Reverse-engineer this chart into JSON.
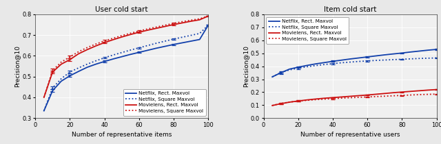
{
  "left": {
    "title": "User cold start",
    "xlabel": "Number of representative items",
    "ylabel": "Precision@10",
    "xlim": [
      0,
      100
    ],
    "ylim": [
      0.3,
      0.8
    ],
    "yticks": [
      0.3,
      0.4,
      0.5,
      0.6,
      0.7,
      0.8
    ],
    "xticks": [
      0,
      20,
      40,
      60,
      80,
      100
    ],
    "x": [
      5,
      10,
      15,
      20,
      25,
      30,
      35,
      40,
      45,
      50,
      55,
      60,
      65,
      70,
      75,
      80,
      85,
      90,
      95,
      100
    ],
    "netflix_rect": [
      0.335,
      0.432,
      0.478,
      0.504,
      0.525,
      0.545,
      0.56,
      0.573,
      0.585,
      0.596,
      0.607,
      0.617,
      0.627,
      0.637,
      0.646,
      0.655,
      0.663,
      0.671,
      0.679,
      0.748
    ],
    "netflix_square": [
      0.335,
      0.445,
      0.49,
      0.522,
      0.542,
      0.56,
      0.576,
      0.591,
      0.604,
      0.616,
      0.628,
      0.639,
      0.65,
      0.661,
      0.671,
      0.681,
      0.69,
      0.699,
      0.708,
      0.748
    ],
    "movielens_rect": [
      0.4,
      0.522,
      0.56,
      0.582,
      0.61,
      0.63,
      0.648,
      0.664,
      0.678,
      0.691,
      0.703,
      0.714,
      0.724,
      0.733,
      0.742,
      0.751,
      0.759,
      0.767,
      0.774,
      0.792
    ],
    "movielens_square": [
      0.4,
      0.53,
      0.57,
      0.595,
      0.62,
      0.64,
      0.657,
      0.672,
      0.685,
      0.698,
      0.709,
      0.72,
      0.73,
      0.739,
      0.748,
      0.757,
      0.765,
      0.772,
      0.779,
      0.792
    ],
    "netflix_rect_err": [
      0.012,
      0.007,
      0.006,
      0.006,
      0.005,
      0.004,
      0.004,
      0.004,
      0.004,
      0.003,
      0.003,
      0.003,
      0.003,
      0.003,
      0.003,
      0.003,
      0.003,
      0.003,
      0.003,
      0.003
    ],
    "netflix_square_err": [
      0.012,
      0.007,
      0.006,
      0.006,
      0.005,
      0.004,
      0.004,
      0.004,
      0.004,
      0.003,
      0.003,
      0.003,
      0.003,
      0.003,
      0.003,
      0.003,
      0.003,
      0.003,
      0.003,
      0.003
    ],
    "movielens_rect_err": [
      0.012,
      0.008,
      0.007,
      0.006,
      0.005,
      0.005,
      0.004,
      0.004,
      0.004,
      0.003,
      0.003,
      0.003,
      0.003,
      0.003,
      0.003,
      0.003,
      0.003,
      0.003,
      0.003,
      0.003
    ],
    "movielens_square_err": [
      0.012,
      0.008,
      0.007,
      0.006,
      0.005,
      0.005,
      0.004,
      0.004,
      0.004,
      0.003,
      0.003,
      0.003,
      0.003,
      0.003,
      0.003,
      0.003,
      0.003,
      0.003,
      0.003,
      0.003
    ],
    "legend_loc": "lower right",
    "blue": "#1240ab",
    "red": "#cc1111"
  },
  "right": {
    "title": "Item cold start",
    "xlabel": "Number of representative users",
    "ylabel": "Precision@10",
    "xlim": [
      0,
      100
    ],
    "ylim": [
      0.0,
      0.8
    ],
    "yticks": [
      0.0,
      0.1,
      0.2,
      0.3,
      0.4,
      0.5,
      0.6,
      0.7,
      0.8
    ],
    "xticks": [
      0,
      20,
      40,
      60,
      80,
      100
    ],
    "x": [
      5,
      10,
      15,
      20,
      25,
      30,
      35,
      40,
      45,
      50,
      55,
      60,
      65,
      70,
      75,
      80,
      85,
      90,
      95,
      100
    ],
    "netflix_rect": [
      0.318,
      0.35,
      0.378,
      0.393,
      0.406,
      0.418,
      0.428,
      0.438,
      0.447,
      0.456,
      0.464,
      0.472,
      0.48,
      0.488,
      0.495,
      0.502,
      0.51,
      0.517,
      0.524,
      0.53
    ],
    "netflix_square": [
      0.318,
      0.352,
      0.372,
      0.385,
      0.396,
      0.405,
      0.413,
      0.42,
      0.427,
      0.432,
      0.437,
      0.441,
      0.445,
      0.448,
      0.451,
      0.454,
      0.457,
      0.46,
      0.462,
      0.464
    ],
    "movielens_rect": [
      0.097,
      0.111,
      0.123,
      0.132,
      0.14,
      0.147,
      0.153,
      0.158,
      0.163,
      0.168,
      0.173,
      0.178,
      0.184,
      0.19,
      0.196,
      0.201,
      0.206,
      0.211,
      0.216,
      0.22
    ],
    "movielens_square": [
      0.097,
      0.113,
      0.123,
      0.131,
      0.137,
      0.142,
      0.146,
      0.15,
      0.154,
      0.157,
      0.16,
      0.163,
      0.166,
      0.169,
      0.172,
      0.175,
      0.178,
      0.181,
      0.183,
      0.185
    ],
    "netflix_rect_err": [
      0.01,
      0.008,
      0.007,
      0.006,
      0.006,
      0.005,
      0.005,
      0.005,
      0.004,
      0.004,
      0.004,
      0.004,
      0.004,
      0.004,
      0.003,
      0.003,
      0.003,
      0.003,
      0.003,
      0.003
    ],
    "netflix_square_err": [
      0.01,
      0.008,
      0.007,
      0.006,
      0.006,
      0.005,
      0.005,
      0.005,
      0.004,
      0.004,
      0.004,
      0.004,
      0.004,
      0.004,
      0.003,
      0.003,
      0.003,
      0.003,
      0.003,
      0.003
    ],
    "movielens_rect_err": [
      0.007,
      0.006,
      0.005,
      0.005,
      0.004,
      0.004,
      0.004,
      0.004,
      0.003,
      0.003,
      0.003,
      0.003,
      0.003,
      0.003,
      0.003,
      0.003,
      0.003,
      0.003,
      0.003,
      0.003
    ],
    "movielens_square_err": [
      0.007,
      0.006,
      0.005,
      0.005,
      0.004,
      0.004,
      0.004,
      0.004,
      0.003,
      0.003,
      0.003,
      0.003,
      0.003,
      0.003,
      0.003,
      0.003,
      0.003,
      0.003,
      0.003,
      0.003
    ],
    "legend_loc": "upper left",
    "blue": "#1240ab",
    "red": "#cc1111"
  },
  "fig_bg": "#e8e8e8",
  "axes_bg": "#f0f0f0",
  "grid_color": "#ffffff",
  "spine_color": "#333333"
}
